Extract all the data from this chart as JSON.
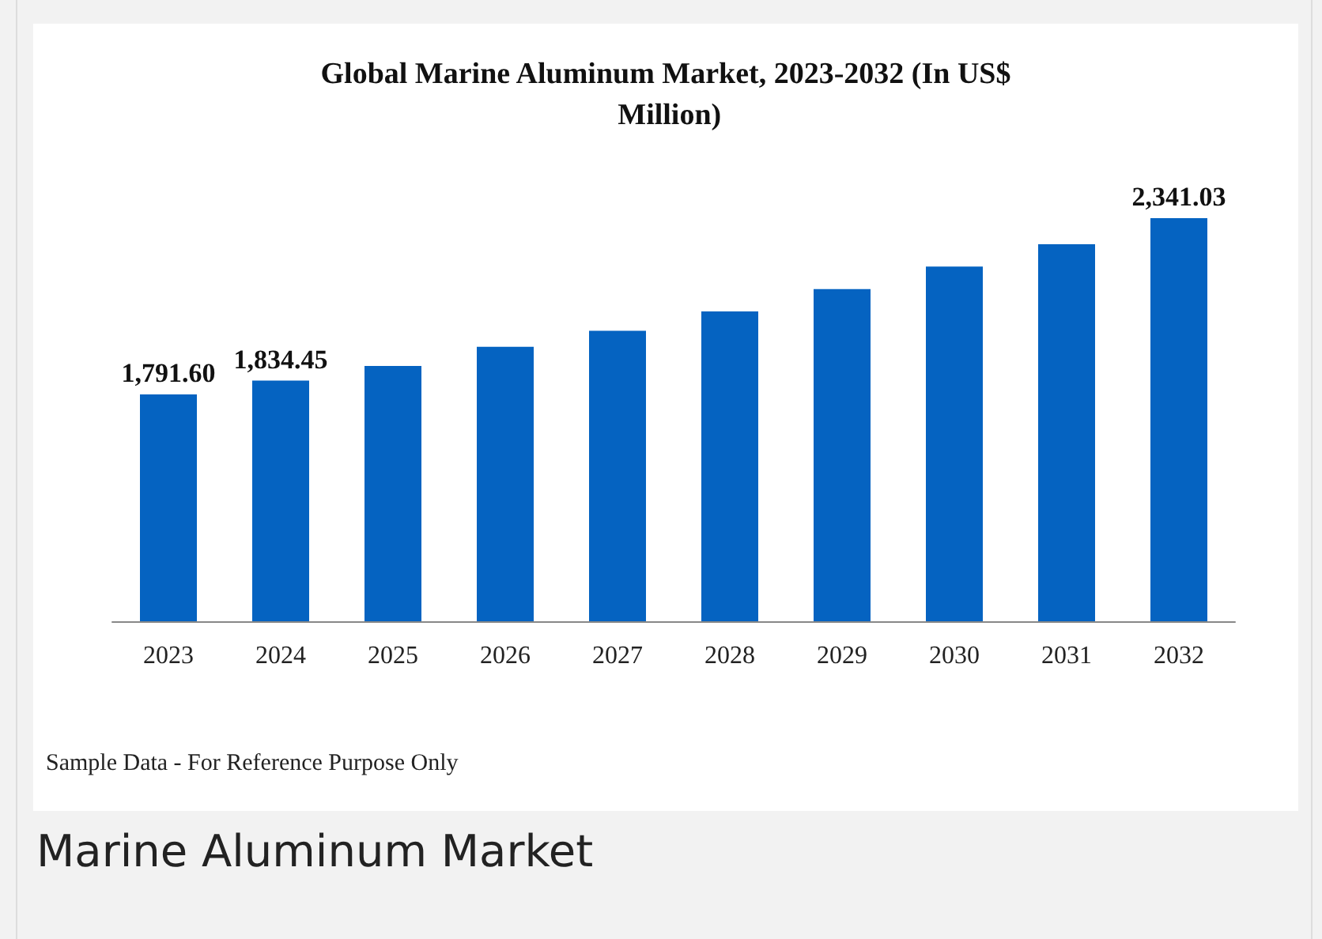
{
  "chart_data": {
    "type": "bar",
    "title": "Global Marine Aluminum Market, 2023-2032 (In US$ Million)",
    "categories": [
      "2023",
      "2024",
      "2025",
      "2026",
      "2027",
      "2028",
      "2029",
      "2030",
      "2031",
      "2032"
    ],
    "values": [
      1791.6,
      1834.45,
      1880,
      1940,
      1990,
      2050,
      2120,
      2190,
      2260,
      2341.03
    ],
    "value_labels": [
      "1,791.60",
      "1,834.45",
      null,
      null,
      null,
      null,
      null,
      null,
      null,
      "2,341.03"
    ],
    "color": "#0563c1",
    "ylim": [
      1084,
      2341.03
    ],
    "annotations": [
      "Sample Data - For Reference Purpose Only",
      "Marine Aluminum Market"
    ]
  }
}
